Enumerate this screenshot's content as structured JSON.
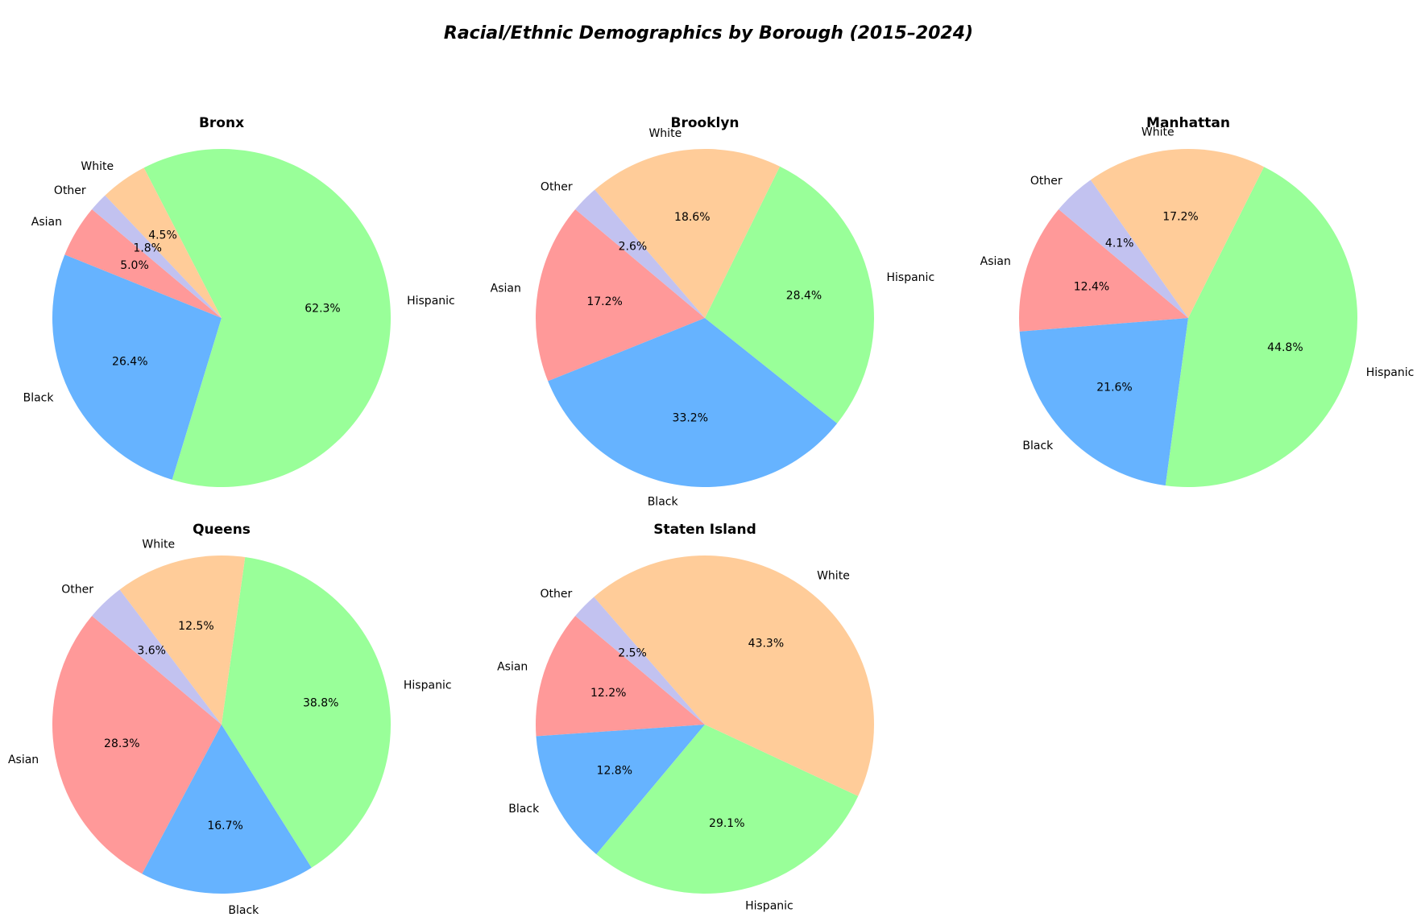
{
  "chart_data": {
    "type": "pie",
    "title": "Racial/Ethnic Demographics by Borough (2015–2024)",
    "categories": [
      "Asian",
      "Black",
      "Hispanic",
      "White",
      "Other"
    ],
    "colors": {
      "Asian": "#ff9999",
      "Black": "#66b3ff",
      "Hispanic": "#99ff99",
      "White": "#ffcc99",
      "Other": "#c2c2f0"
    },
    "start_angle_deg": 140,
    "direction": "counterclockwise",
    "legend": "none",
    "charts": [
      {
        "title": "Bronx",
        "values": [
          5.0,
          26.4,
          62.3,
          4.5,
          1.8
        ]
      },
      {
        "title": "Brooklyn",
        "values": [
          17.2,
          33.2,
          28.4,
          18.6,
          2.6
        ]
      },
      {
        "title": "Manhattan",
        "values": [
          12.4,
          21.6,
          44.8,
          17.2,
          4.1
        ]
      },
      {
        "title": "Queens",
        "values": [
          28.3,
          16.7,
          38.8,
          12.5,
          3.6
        ]
      },
      {
        "title": "Staten Island",
        "values": [
          12.2,
          12.8,
          29.1,
          43.3,
          2.5
        ]
      }
    ]
  }
}
